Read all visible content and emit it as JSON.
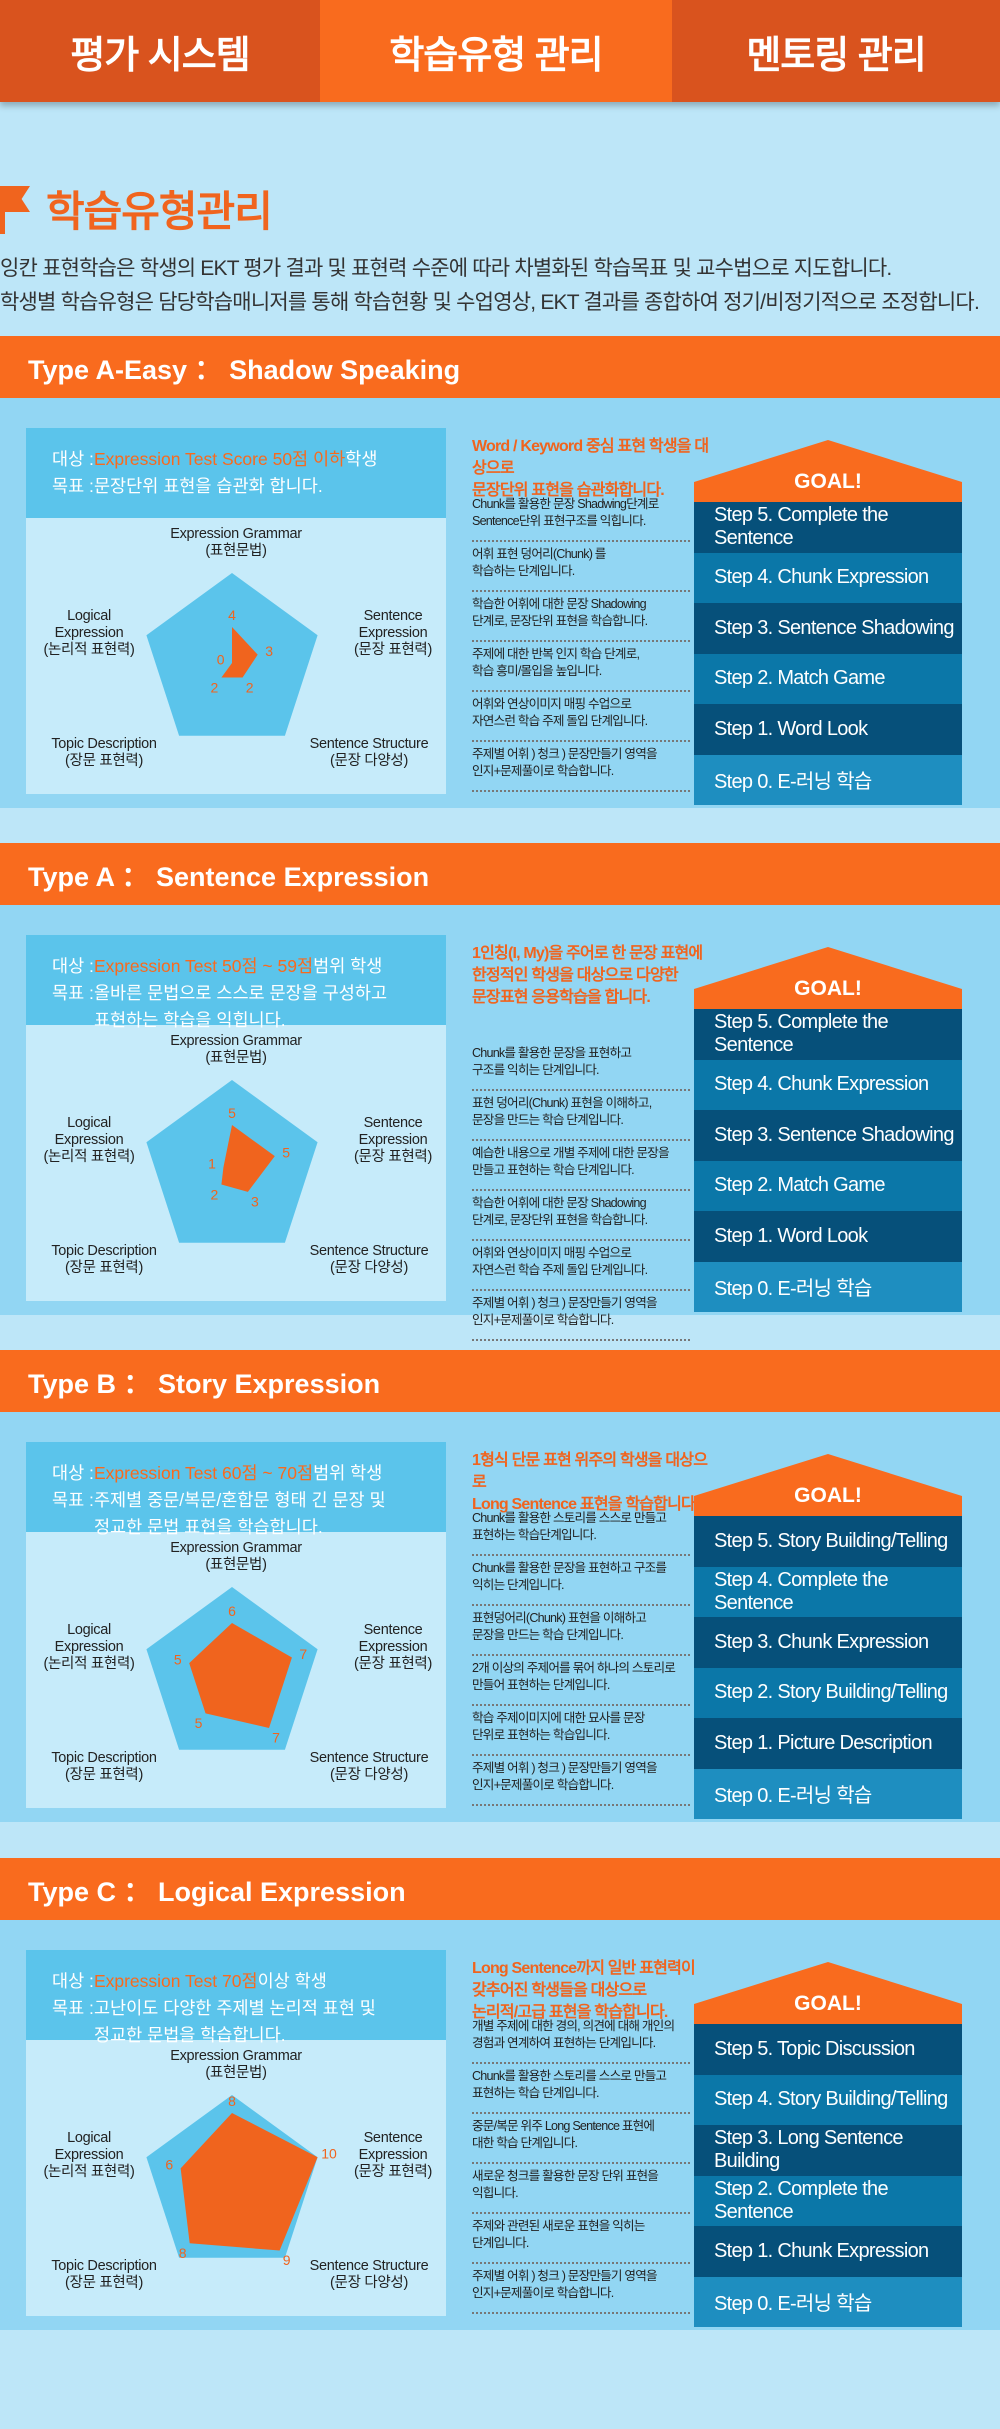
{
  "nav": {
    "tabs": [
      {
        "label": "평가 시스템"
      },
      {
        "label": "학습유형 관리"
      },
      {
        "label": "멘토링 관리"
      }
    ],
    "active_tab": "학습유형 관리"
  },
  "intro": {
    "title": "학습유형관리",
    "lines": [
      "잉칸 표현학습은 학생의 EKT 평가 결과 및 표현력 수준에 따라 차별화된 학습목표 및 교수법으로 지도합니다.",
      "학생별 학습유형은 담당학습매니저를 통해 학습현황 및 수업영상, EKT 결과를 종합하여 정기/비정기적으로 조정합니다."
    ]
  },
  "colors": {
    "accent": "#f96b1e",
    "nav_inactive": "#d9531e",
    "step_dark": "#06507a",
    "step_mid": "#0b77a8",
    "step_light": "#1e8ec0",
    "radar_bg": "#5bc4eb",
    "radar_fill": "#f0641e"
  },
  "radar_axes": [
    "Expression Grammar\n(표현문법)",
    "Sentence\nExpression\n(문장 표현력)",
    "Sentence Structure\n(문장 다양성)",
    "Topic Description\n(장문 표현력)",
    "Logical\nExpression\n(논리적 표현력)"
  ],
  "radar_max": 10,
  "goal_label": "GOAL!",
  "labels": {
    "target": "대상 : ",
    "goal": "목표 : "
  },
  "sections": [
    {
      "title": "Type A-Easy ： Shadow Speaking",
      "target_hl": "Expression Test Score 50점 이하",
      "target_suffix": " 학생",
      "goal": "문장단위 표현을 습관화 합니다.",
      "radar_values": [
        4,
        3,
        2,
        2,
        0
      ],
      "goal_desc": "Word  / Keyword 중심 표현 학생을 대상으로\n문장단위 표현을 습관화합니다.",
      "notes": [
        "Chunk를 활용한 문장 Shadwing단계로\nSentence단위 표현구조를 익힙니다.",
        "어휘 표현 덩어리(Chunk) 를\n학습하는 단계입니다.",
        "학습한 어휘에 대한 문장 Shadowing\n단계로, 문장단위 표현을 학습합니다.",
        "주제에 대한 반복 인지 학습 단계로,\n학습 흥미/몰입을 높입니다.",
        "어휘와 연상이미지 매핑 수업으로\n자연스런 학습 주제 돌입 단계입니다.",
        "주제별 어휘 ) 청크 ) 문장만들기 영역을\n인지+문제풀이로 학습합니다."
      ],
      "steps": [
        "Step 5. Complete the Sentence",
        "Step 4. Chunk Expression",
        "Step 3. Sentence Shadowing",
        "Step 2. Match Game",
        "Step 1. Word Look",
        "Step 0. E-러닝 학습"
      ]
    },
    {
      "title": "Type A ： Sentence Expression",
      "target_hl": "Expression Test 50점 ~ 59점",
      "target_suffix": " 범위 학생",
      "goal": "올바른 문법으로 스스로 문장을 구성하고\n표현하는 학습을 익힙니다.",
      "radar_values": [
        5,
        5,
        3,
        2,
        1
      ],
      "goal_desc": "1인칭(I, My)을 주어로 한 문장 표현에\n한정적인 학생을 대상으로 다양한\n문장표현 응용학습을 합니다.",
      "notes": [
        "Chunk를 활용한 문장을 표현하고\n구조를 익히는 단계입니다.",
        "표현 덩어리(Chunk) 표현을 이해하고,\n문장을 만드는 학습 단계입니다.",
        "예습한 내용으로 개별 주제에 대한 문장을\n만들고 표현하는 학습 단계입니다.",
        "학습한 어휘에 대한 문장 Shadowing\n단계로, 문장단위 표현을 학습합니다.",
        "어휘와 연상이미지 매핑 수업으로\n자연스런 학습 주제 돌입 단계입니다.",
        "주제별 어휘 ) 청크 ) 문장만들기 영역을\n인지+문제풀이로 학습합니다."
      ],
      "steps": [
        "Step 5. Complete the Sentence",
        "Step 4. Chunk Expression",
        "Step 3. Sentence Shadowing",
        "Step 2. Match Game",
        "Step 1. Word Look",
        "Step 0. E-러닝 학습"
      ]
    },
    {
      "title": "Type B ： Story Expression",
      "target_hl": "Expression Test 60점 ~ 70점",
      "target_suffix": " 범위 학생",
      "goal": "주제별 중문/복문/혼합문 형태 긴 문장 및\n정교한 문법 표현을 학습합니다.",
      "radar_values": [
        6,
        7,
        7,
        5,
        5
      ],
      "goal_desc": "1형식 단문 표현 위주의 학생을 대상으로\nLong Sentence 표현을 학습합니다.",
      "notes": [
        "Chunk를 활용한 스토리를 스스로 만들고\n표현하는 학습단계입니다.",
        "Chunk를 활용한 문장을 표현하고 구조를\n익히는 단계입니다.",
        "표현덩어리(Chunk) 표현을 이해하고\n문장을 만드는 학습 단계입니다.",
        "2개 이상의 주제어를 묶어 하나의 스토리로\n만들어 표현하는 단계입니다.",
        "학습 주제이미지에 대한 묘사를 문장\n단위로 표현하는 학습입니다.",
        "주제별 어휘 ) 청크 ) 문장만들기 영역을\n인지+문제풀이로 학습합니다."
      ],
      "steps": [
        "Step 5. Story Building/Telling",
        "Step 4. Complete the Sentence",
        "Step 3. Chunk Expression",
        "Step 2. Story Building/Telling",
        "Step 1. Picture Description",
        "Step 0.  E-러닝 학습"
      ]
    },
    {
      "title": "Type C ： Logical Expression",
      "target_hl": "Expression Test 70점",
      "target_suffix": " 이상 학생",
      "goal": "고난이도 다양한 주제별 논리적 표현 및\n정교한 문법을 학습합니다.",
      "radar_values": [
        8,
        10,
        9,
        8,
        6
      ],
      "goal_desc": "Long Sentence까지 일반 표현력이\n갖추어진 학생들을 대상으로\n논리적/고급 표현을 학습합니다.",
      "notes": [
        "개별 주제에 대한 경의, 의견에 대해 개인의\n경험과 연계하여 표현하는 단계입니다.",
        "Chunk를 활용한 스토리를 스스로 만들고\n표현하는 학습 단계입니다.",
        "중문/복문 위주 Long Sentence 표현에\n대한 학습 단계입니다.",
        "새로운 청크를 활용한 문장 단위 표현을\n익힙니다.",
        "주제와 관련된 새로운 표현을 익히는\n단계입니다.",
        "주제별 어휘 ) 청크 ) 문장만들기 영역을\n인지+문제풀이로 학습합니다."
      ],
      "steps": [
        "Step 5. Topic Discussion",
        "Step 4. Story Building/Telling",
        "Step 3. Long Sentence Building",
        "Step 2. Complete the Sentence",
        "Step 1. Chunk Expression",
        "Step 0.  E-러닝 학습"
      ]
    }
  ]
}
